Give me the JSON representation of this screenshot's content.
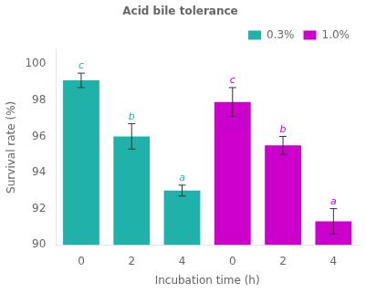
{
  "chart_data": {
    "type": "bar",
    "title": "Acid bile tolerance",
    "xlabel": "Incubation time (h)",
    "ylabel": "Survival rate (%)",
    "categories": [
      "0",
      "2",
      "4",
      "0",
      "2",
      "4"
    ],
    "series": [
      {
        "name": "0.3%",
        "color": "#20b2aa",
        "values": [
          99.1,
          96.0,
          93.0,
          null,
          null,
          null
        ],
        "errors": [
          0.4,
          0.7,
          0.3,
          null,
          null,
          null
        ],
        "letters": [
          "c",
          "b",
          "a",
          null,
          null,
          null
        ]
      },
      {
        "name": "1.0%",
        "color": "#cc00cc",
        "values": [
          null,
          null,
          null,
          97.9,
          95.5,
          91.3
        ],
        "errors": [
          null,
          null,
          null,
          0.8,
          0.5,
          0.7
        ],
        "letters": [
          null,
          null,
          null,
          "c",
          "b",
          "a"
        ]
      }
    ],
    "ylim": [
      90,
      100.8
    ],
    "yticks": [
      90,
      92,
      94,
      96,
      98,
      100
    ],
    "grid": false,
    "legend": "upper right"
  }
}
